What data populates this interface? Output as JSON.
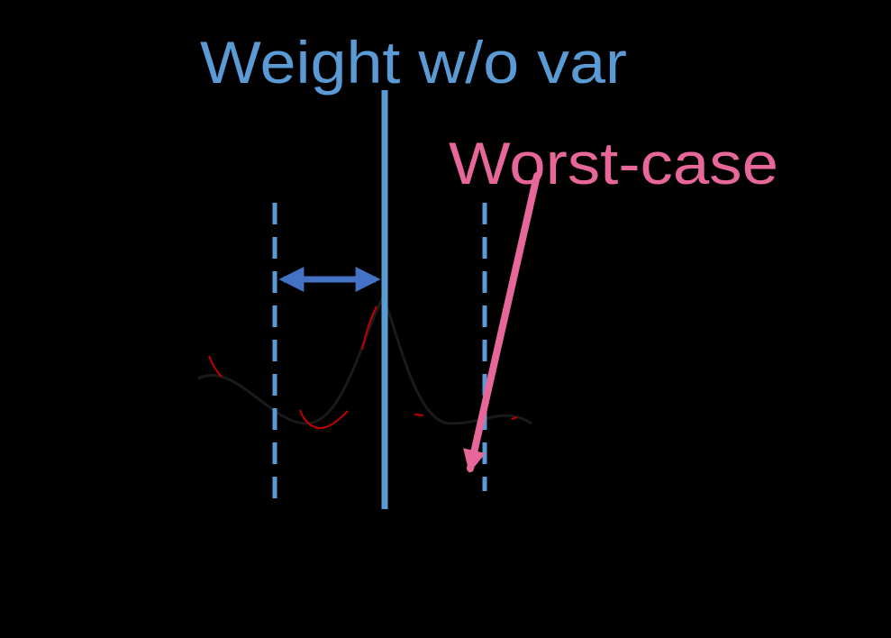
{
  "labels": {
    "nominal": "Weight w/o var",
    "worst_case": "Worst-case"
  },
  "colors": {
    "background": "#000000",
    "nominal_line": "#5b9bd5",
    "bound_arrow": "#4472c4",
    "worst_case": "#e8679a",
    "curve": "#c00000",
    "curve_outline": "#1a1a1a"
  }
}
